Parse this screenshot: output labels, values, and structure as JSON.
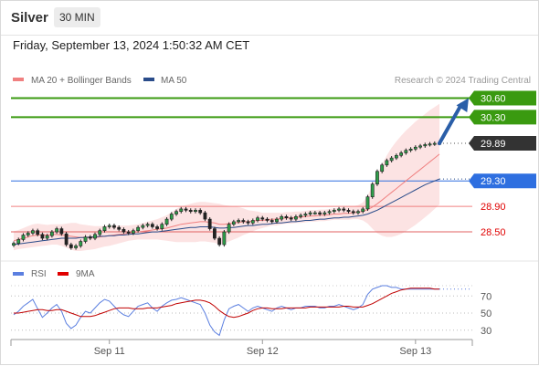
{
  "header": {
    "symbol": "Silver",
    "interval": "30 MIN"
  },
  "timestamp": "Friday, September 13, 2024 1:50:32 AM CET",
  "legend": {
    "main": [
      {
        "label": "MA 20 + Bollinger Bands",
        "color": "#f08080"
      },
      {
        "label": "MA 50",
        "color": "#2a4c8a"
      }
    ],
    "copyright": "Research © 2024 Trading Central",
    "rsi": [
      {
        "label": "RSI",
        "color": "#5b7fe0"
      },
      {
        "label": "9MA",
        "color": "#e00000"
      }
    ]
  },
  "chart_data": {
    "type": "candlestick",
    "instrument": "Silver",
    "price_range": [
      28.2,
      30.75
    ],
    "levels": [
      {
        "label": "30.60",
        "value": 30.6,
        "color": "#3a9a10",
        "text_color": "#ffffff"
      },
      {
        "label": "30.30",
        "value": 30.3,
        "color": "#3a9a10",
        "text_color": "#ffffff"
      },
      {
        "label": "29.89",
        "value": 29.89,
        "color": "#333333",
        "text_color": "#ffffff"
      },
      {
        "label": "29.30",
        "value": 29.3,
        "color": "#2e6fe0",
        "text_color": "#ffffff"
      },
      {
        "label": "28.90",
        "value": 28.9,
        "color": "#f08080",
        "text_color": "#e00000"
      },
      {
        "label": "28.50",
        "value": 28.5,
        "color": "#e06060",
        "text_color": "#e00000"
      }
    ],
    "x_ticks": [
      "Sep 11",
      "Sep 12",
      "Sep 13"
    ],
    "x_tick_bars": [
      20,
      52,
      84
    ],
    "bar_count": 90,
    "candles_close": [
      28.32,
      28.38,
      28.45,
      28.48,
      28.52,
      28.46,
      28.4,
      28.44,
      28.5,
      28.55,
      28.47,
      28.3,
      28.25,
      28.28,
      28.35,
      28.42,
      28.4,
      28.46,
      28.52,
      28.58,
      28.6,
      28.57,
      28.54,
      28.5,
      28.48,
      28.52,
      28.57,
      28.6,
      28.62,
      28.58,
      28.55,
      28.62,
      28.7,
      28.78,
      28.82,
      28.86,
      28.84,
      28.82,
      28.84,
      28.8,
      28.7,
      28.55,
      28.4,
      28.3,
      28.5,
      28.62,
      28.66,
      28.68,
      28.66,
      28.64,
      28.68,
      28.72,
      28.7,
      28.68,
      28.66,
      28.7,
      28.74,
      28.72,
      28.7,
      28.74,
      28.76,
      28.78,
      28.8,
      28.8,
      28.78,
      28.8,
      28.82,
      28.84,
      28.86,
      28.84,
      28.82,
      28.8,
      28.82,
      28.86,
      29.05,
      29.25,
      29.45,
      29.55,
      29.62,
      29.66,
      29.7,
      29.74,
      29.78,
      29.8,
      29.83,
      29.85,
      29.87,
      29.88,
      29.89,
      29.89
    ],
    "ma20": [
      28.36,
      28.38,
      28.4,
      28.42,
      28.44,
      28.45,
      28.45,
      28.45,
      28.46,
      28.46,
      28.45,
      28.44,
      28.43,
      28.42,
      28.41,
      28.41,
      28.41,
      28.41,
      28.42,
      28.43,
      28.44,
      28.45,
      28.46,
      28.47,
      28.48,
      28.49,
      28.5,
      28.51,
      28.52,
      28.53,
      28.54,
      28.55,
      28.56,
      28.58,
      28.6,
      28.62,
      28.63,
      28.64,
      28.65,
      28.66,
      28.66,
      28.65,
      28.64,
      28.62,
      28.62,
      28.63,
      28.64,
      28.65,
      28.66,
      28.66,
      28.67,
      28.68,
      28.68,
      28.69,
      28.7,
      28.7,
      28.71,
      28.72,
      28.72,
      28.73,
      28.73,
      28.74,
      28.75,
      28.75,
      28.76,
      28.76,
      28.77,
      28.78,
      28.78,
      28.79,
      28.79,
      28.8,
      28.81,
      28.82,
      28.85,
      28.89,
      28.94,
      29.0,
      29.06,
      29.12,
      29.18,
      29.24,
      29.3,
      29.36,
      29.42,
      29.48,
      29.54,
      29.6,
      29.66,
      29.72
    ],
    "ma50": [
      28.3,
      28.31,
      28.32,
      28.33,
      28.34,
      28.35,
      28.36,
      28.37,
      28.38,
      28.39,
      28.4,
      28.4,
      28.4,
      28.4,
      28.41,
      28.41,
      28.42,
      28.42,
      28.43,
      28.43,
      28.44,
      28.44,
      28.45,
      28.45,
      28.46,
      28.47,
      28.47,
      28.48,
      28.49,
      28.5,
      28.5,
      28.51,
      28.52,
      28.53,
      28.54,
      28.55,
      28.56,
      28.57,
      28.57,
      28.58,
      28.58,
      28.58,
      28.57,
      28.56,
      28.56,
      28.57,
      28.57,
      28.58,
      28.59,
      28.6,
      28.6,
      28.61,
      28.62,
      28.62,
      28.63,
      28.64,
      28.64,
      28.65,
      28.66,
      28.66,
      28.67,
      28.68,
      28.68,
      28.69,
      28.7,
      28.7,
      28.71,
      28.72,
      28.72,
      28.73,
      28.73,
      28.74,
      28.75,
      28.76,
      28.78,
      28.81,
      28.84,
      28.88,
      28.92,
      28.96,
      29.0,
      29.04,
      29.08,
      29.12,
      29.16,
      29.2,
      29.24,
      29.27,
      29.3,
      29.33
    ],
    "band_width": [
      0.15,
      0.15,
      0.16,
      0.17,
      0.18,
      0.18,
      0.17,
      0.16,
      0.16,
      0.16,
      0.17,
      0.19,
      0.21,
      0.22,
      0.21,
      0.2,
      0.19,
      0.18,
      0.17,
      0.16,
      0.16,
      0.15,
      0.14,
      0.13,
      0.12,
      0.12,
      0.12,
      0.13,
      0.14,
      0.15,
      0.16,
      0.18,
      0.2,
      0.23,
      0.26,
      0.28,
      0.29,
      0.3,
      0.31,
      0.31,
      0.31,
      0.31,
      0.31,
      0.32,
      0.3,
      0.28,
      0.26,
      0.24,
      0.21,
      0.18,
      0.16,
      0.14,
      0.12,
      0.11,
      0.1,
      0.1,
      0.09,
      0.09,
      0.09,
      0.09,
      0.09,
      0.09,
      0.09,
      0.09,
      0.09,
      0.09,
      0.09,
      0.09,
      0.09,
      0.1,
      0.1,
      0.1,
      0.11,
      0.14,
      0.22,
      0.34,
      0.46,
      0.56,
      0.64,
      0.7,
      0.74,
      0.77,
      0.79,
      0.8,
      0.81,
      0.81,
      0.81,
      0.81,
      0.8,
      0.79
    ],
    "projection": {
      "from_bar": 89,
      "from_price": 29.89,
      "to_price": 30.6
    },
    "rsi": {
      "levels": [
        70,
        50,
        30
      ],
      "range": [
        18,
        82
      ],
      "rsi_values": [
        48,
        52,
        58,
        62,
        66,
        55,
        45,
        50,
        56,
        60,
        52,
        38,
        32,
        36,
        45,
        52,
        50,
        56,
        62,
        66,
        64,
        58,
        52,
        48,
        46,
        52,
        58,
        60,
        62,
        56,
        52,
        58,
        62,
        65,
        66,
        68,
        66,
        64,
        62,
        60,
        50,
        36,
        28,
        24,
        42,
        55,
        58,
        60,
        56,
        52,
        56,
        58,
        56,
        54,
        52,
        56,
        58,
        56,
        54,
        56,
        56,
        58,
        58,
        58,
        56,
        56,
        58,
        58,
        60,
        58,
        56,
        54,
        56,
        60,
        72,
        78,
        80,
        82,
        82,
        80,
        80,
        78,
        78,
        78,
        78,
        78,
        78,
        78,
        78,
        78
      ],
      "ma9_values": [
        50,
        50,
        51,
        52,
        53,
        54,
        54,
        53,
        53,
        54,
        54,
        52,
        50,
        48,
        46,
        46,
        46,
        47,
        49,
        51,
        53,
        55,
        56,
        56,
        56,
        55,
        55,
        55,
        56,
        56,
        56,
        57,
        58,
        59,
        61,
        62,
        63,
        64,
        65,
        65,
        64,
        62,
        58,
        53,
        49,
        46,
        45,
        46,
        48,
        50,
        53,
        55,
        56,
        56,
        55,
        55,
        55,
        56,
        56,
        56,
        56,
        56,
        57,
        57,
        57,
        57,
        57,
        57,
        57,
        58,
        58,
        57,
        57,
        57,
        59,
        61,
        64,
        67,
        70,
        73,
        75,
        77,
        78,
        79,
        79,
        79,
        79,
        79,
        78,
        78
      ]
    }
  }
}
